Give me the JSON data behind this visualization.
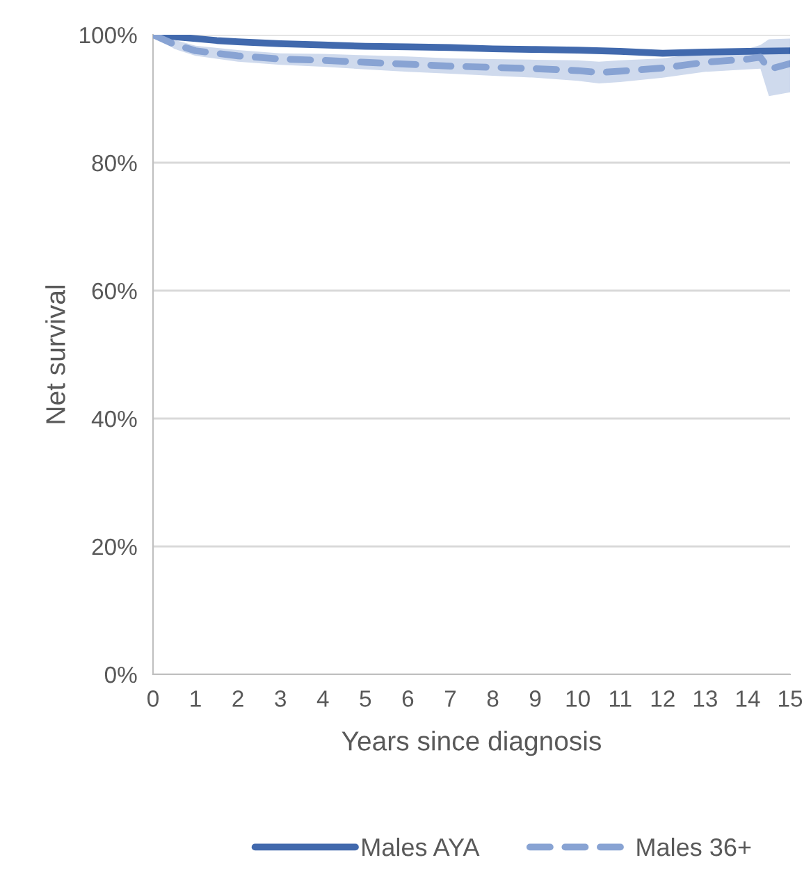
{
  "chart_data": {
    "type": "line",
    "xlabel": "Years since diagnosis",
    "ylabel": "Net survival",
    "xlim": [
      0,
      15
    ],
    "xticks": [
      0,
      1,
      2,
      3,
      4,
      5,
      6,
      7,
      8,
      9,
      10,
      11,
      12,
      13,
      14,
      15
    ],
    "ylim": [
      0,
      100
    ],
    "yticks": [
      {
        "value": 0,
        "label": "0%"
      },
      {
        "value": 20,
        "label": "20%"
      },
      {
        "value": 40,
        "label": "40%"
      },
      {
        "value": 60,
        "label": "60%"
      },
      {
        "value": 80,
        "label": "80%"
      },
      {
        "value": 100,
        "label": "100%"
      }
    ],
    "grid": "y",
    "legend": "bottom",
    "series": [
      {
        "name": "Males AYA",
        "color": "#4169ad",
        "line_style": "solid",
        "x": [
          0,
          0.5,
          1,
          1.5,
          2,
          3,
          4,
          5,
          6,
          7,
          8,
          9,
          10,
          11,
          12,
          13,
          14,
          15
        ],
        "values": [
          100,
          99.7,
          99.4,
          99.1,
          98.9,
          98.6,
          98.4,
          98.2,
          98.1,
          98.0,
          97.8,
          97.7,
          97.6,
          97.4,
          97.1,
          97.3,
          97.4,
          97.5
        ]
      },
      {
        "name": "Males 36+",
        "color": "#88a3d3",
        "line_style": "dashed",
        "x": [
          0,
          0.5,
          1,
          2,
          3,
          4,
          5,
          6,
          7,
          8,
          9,
          10,
          10.5,
          11,
          12,
          13,
          14,
          14.3,
          14.5,
          15
        ],
        "values": [
          100,
          98.5,
          97.5,
          96.7,
          96.2,
          96.0,
          95.7,
          95.4,
          95.1,
          94.9,
          94.7,
          94.4,
          94.1,
          94.3,
          94.8,
          95.7,
          96.2,
          96.5,
          94.6,
          95.5
        ],
        "lower": [
          100,
          97.8,
          96.7,
          95.8,
          95.3,
          95.0,
          94.6,
          94.2,
          93.9,
          93.6,
          93.3,
          92.8,
          92.4,
          92.6,
          93.3,
          94.2,
          94.6,
          94.7,
          90.4,
          91.0
        ],
        "upper": [
          100,
          99.2,
          98.3,
          97.6,
          97.1,
          97.0,
          96.8,
          96.6,
          96.3,
          96.2,
          96.1,
          96.0,
          95.8,
          96.0,
          96.3,
          97.2,
          97.8,
          98.4,
          99.3,
          99.4
        ]
      }
    ]
  }
}
